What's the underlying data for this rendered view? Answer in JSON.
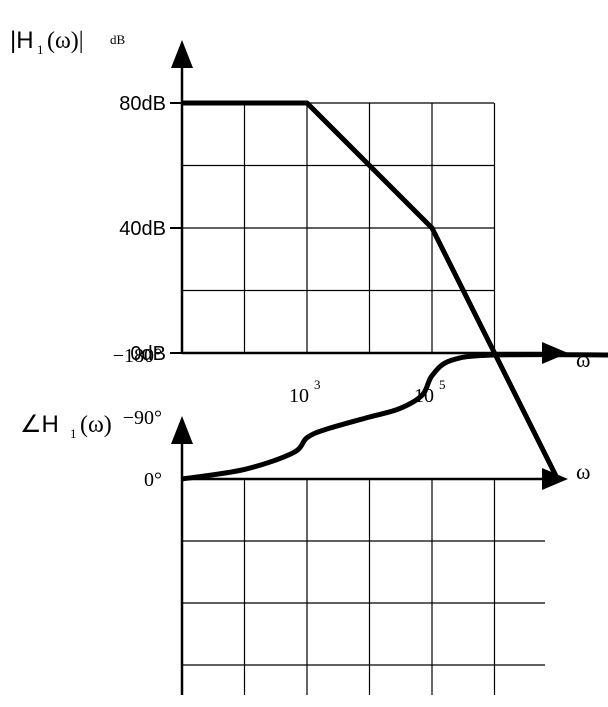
{
  "chart_data": [
    {
      "type": "line",
      "title": "",
      "x_scale": "log",
      "xlabel": "ω",
      "ylabel": {
        "main": "|H",
        "sub": "1",
        "arg": "(ω)|",
        "unit": "dB"
      },
      "x_ticks": [
        {
          "label": "10",
          "exp": "3",
          "x": 1000
        },
        {
          "label": "10",
          "exp": "5",
          "x": 100000
        }
      ],
      "y_ticks": [
        {
          "label": "80dB",
          "y": 80
        },
        {
          "label": "40dB",
          "y": 40
        },
        {
          "label": "0dB",
          "y": 0
        }
      ],
      "xlim": [
        10,
        100000000
      ],
      "ylim": [
        0,
        80
      ],
      "grid": true,
      "series": [
        {
          "points": [
            {
              "x": 10,
              "y": 80
            },
            {
              "x": 1000,
              "y": 80
            },
            {
              "x": 100000,
              "y": 40
            },
            {
              "x": 1000000,
              "y": 0
            },
            {
              "x": 10000000,
              "y": -40
            }
          ]
        }
      ]
    },
    {
      "type": "line",
      "title": "",
      "x_scale": "log",
      "xlabel": "ω",
      "ylabel": {
        "main": "∠H",
        "sub": "1",
        "arg": "(ω)"
      },
      "y_ticks": [
        {
          "label": "0°",
          "y": 0
        },
        {
          "label": "−90°",
          "y": -90
        },
        {
          "label": "−180°",
          "y": -180
        }
      ],
      "xlim": [
        10,
        100000000
      ],
      "ylim": [
        -270,
        0
      ],
      "grid": true,
      "series": [
        {
          "points": [
            {
              "x": 10,
              "y": 0
            },
            {
              "x": 100,
              "y": -14
            },
            {
              "x": 600,
              "y": -38
            },
            {
              "x": 1000,
              "y": -60
            },
            {
              "x": 2000,
              "y": -72
            },
            {
              "x": 10000,
              "y": -90
            },
            {
              "x": 30000,
              "y": -102
            },
            {
              "x": 70000,
              "y": -122
            },
            {
              "x": 100000,
              "y": -150
            },
            {
              "x": 200000,
              "y": -172
            },
            {
              "x": 1000000,
              "y": -180
            },
            {
              "x": 100000000,
              "y": -180
            }
          ]
        }
      ]
    }
  ]
}
